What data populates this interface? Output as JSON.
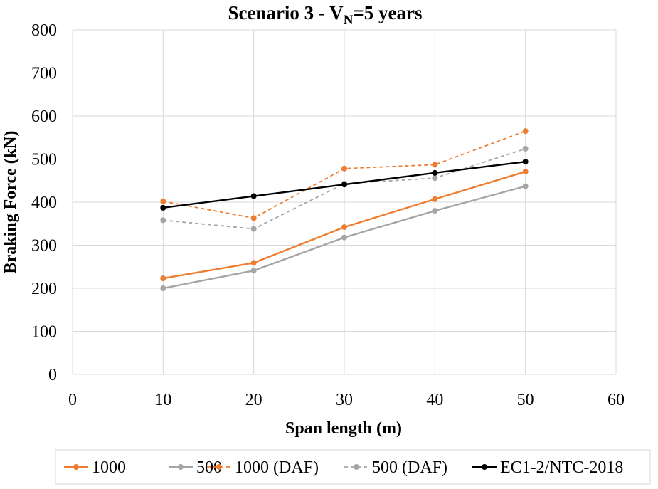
{
  "chart_data": {
    "type": "line",
    "title": {
      "main": "Scenario 3 - V",
      "sub": "N",
      "rest": "=5 years"
    },
    "xlabel": "Span length (m)",
    "ylabel": "Braking Force (kN)",
    "xlim": [
      0,
      60
    ],
    "ylim": [
      0,
      800
    ],
    "xticks": [
      0,
      10,
      20,
      30,
      40,
      50,
      60
    ],
    "yticks": [
      0,
      100,
      200,
      300,
      400,
      500,
      600,
      700,
      800
    ],
    "grid": "horizontal and vertical",
    "legend_position": "bottom",
    "x": [
      10,
      20,
      30,
      40,
      50
    ],
    "series": [
      {
        "name": "1000",
        "values": [
          223,
          259,
          342,
          407,
          471
        ],
        "color": "#ED7D31",
        "dashed": false
      },
      {
        "name": "500",
        "values": [
          200,
          241,
          318,
          380,
          437
        ],
        "color": "#A5A5A5",
        "dashed": false
      },
      {
        "name": "1000 (DAF)",
        "values": [
          402,
          363,
          478,
          487,
          565
        ],
        "color": "#ED7D31",
        "dashed": true
      },
      {
        "name": "500 (DAF)",
        "values": [
          358,
          338,
          443,
          456,
          524
        ],
        "color": "#A5A5A5",
        "dashed": true
      },
      {
        "name": "EC1-2/NTC-2018",
        "values": [
          387,
          414,
          441,
          468,
          494
        ],
        "color": "#000000",
        "dashed": false
      }
    ]
  }
}
